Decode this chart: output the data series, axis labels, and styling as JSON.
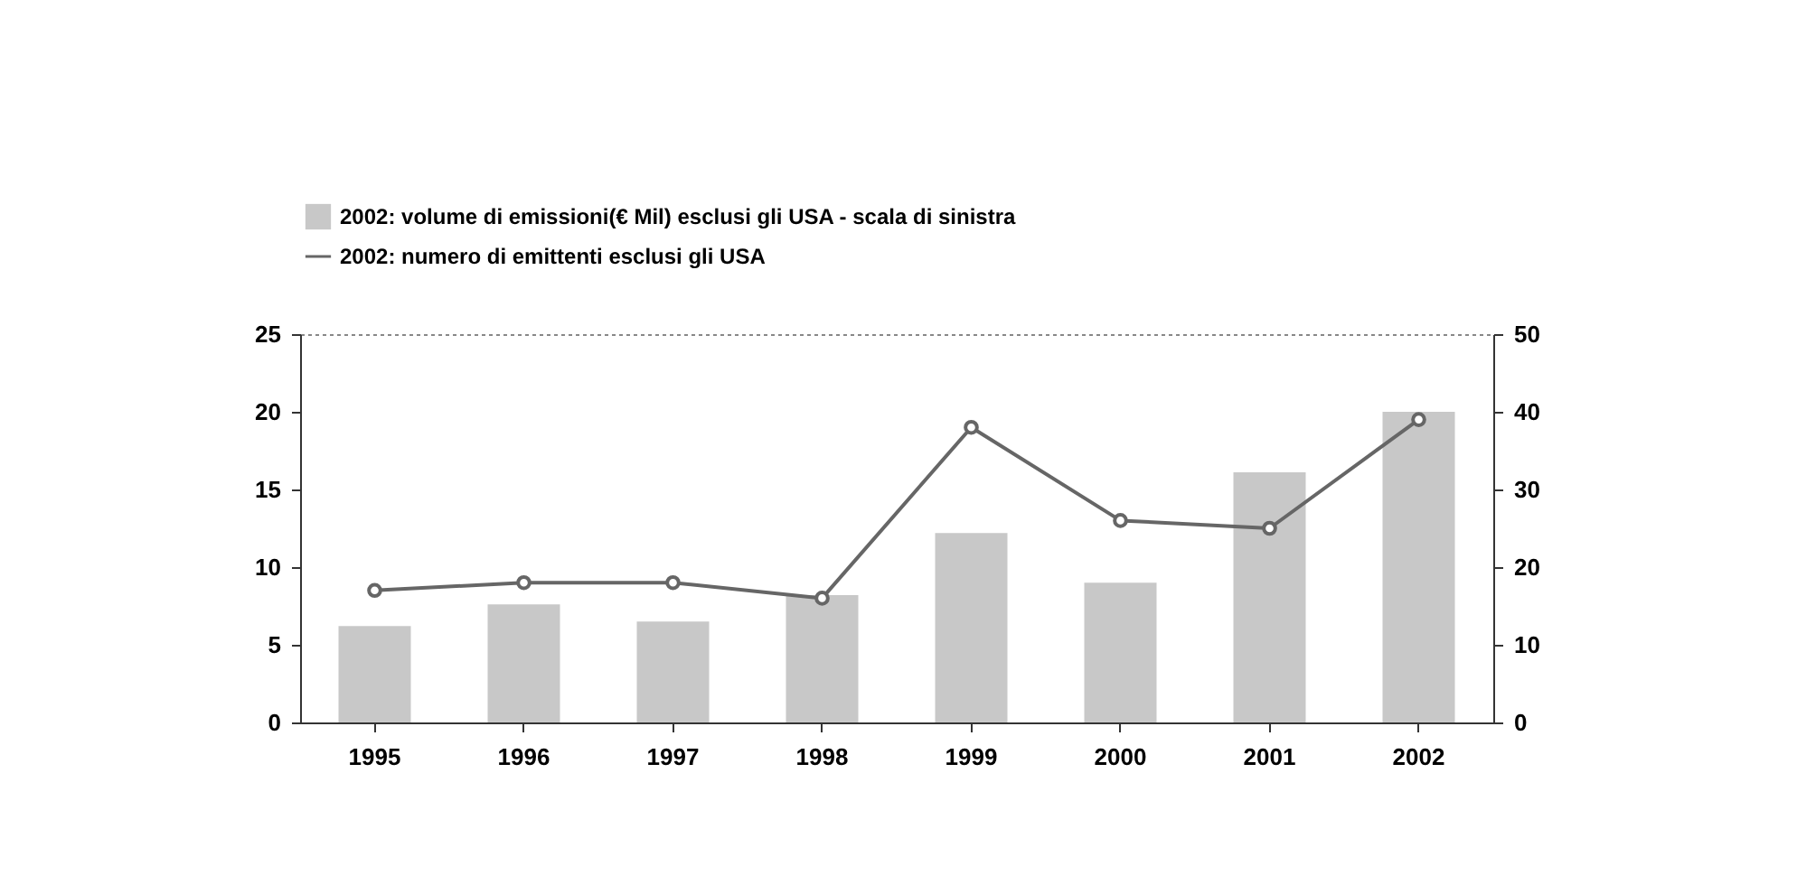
{
  "chart_data": {
    "type": "bar",
    "categories": [
      "1995",
      "1996",
      "1997",
      "1998",
      "1999",
      "2000",
      "2001",
      "2002"
    ],
    "series": [
      {
        "name": "2002: volume di emissioni(€ Mil) esclusi gli USA - scala di sinistra",
        "color": "#c8c8c8",
        "values": [
          6.2,
          7.6,
          6.5,
          8.2,
          12.2,
          9.0,
          16.1,
          20.0
        ]
      },
      {
        "name": "2002: numero di emittenti esclusi gli USA",
        "type": "line",
        "axis": "y2",
        "color": "#666666",
        "values": [
          17,
          18,
          18,
          16,
          38,
          26,
          25,
          39
        ]
      }
    ],
    "ylim": [
      0,
      25
    ],
    "yticks": [
      0,
      5,
      10,
      15,
      20,
      25
    ],
    "y2lim": [
      0,
      50
    ],
    "y2ticks": [
      0,
      10,
      20,
      30,
      40,
      50
    ],
    "marker": "circle",
    "line_style": "solid",
    "grid": false,
    "legend": "top"
  }
}
